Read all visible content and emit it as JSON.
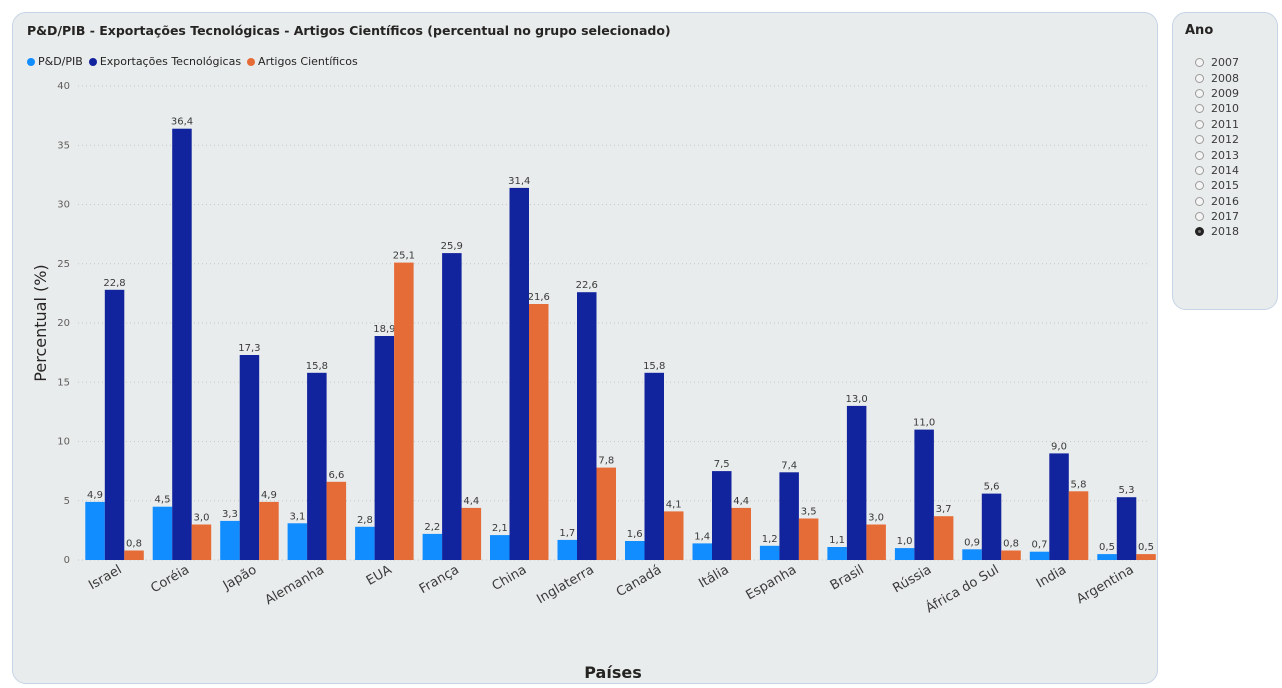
{
  "chart_title": "P&D/PIB - Exportações Tecnológicas - Artigos Científicos (percentual no grupo selecionado)",
  "colors": {
    "pd_pib": "#118dff",
    "exportacoes": "#12239e",
    "artigos": "#e66c37"
  },
  "slicer": {
    "title": "Ano",
    "options": [
      "2007",
      "2008",
      "2009",
      "2010",
      "2011",
      "2012",
      "2013",
      "2014",
      "2015",
      "2016",
      "2017",
      "2018"
    ],
    "selected": "2018"
  },
  "chart_data": {
    "type": "bar",
    "title": "P&D/PIB - Exportações Tecnológicas - Artigos Científicos (percentual no grupo selecionado)",
    "xlabel": "Países",
    "ylabel": "Percentual (%)",
    "ylim": [
      0,
      40
    ],
    "yticks": [
      0,
      5,
      10,
      15,
      20,
      25,
      30,
      35,
      40
    ],
    "grid": true,
    "legend_position": "top-left",
    "categories": [
      "Israel",
      "Coréia",
      "Japão",
      "Alemanha",
      "EUA",
      "França",
      "China",
      "Inglaterra",
      "Canadá",
      "Itália",
      "Espanha",
      "Brasil",
      "Rússia",
      "África do Sul",
      "India",
      "Argentina"
    ],
    "series": [
      {
        "name": "P&D/PIB",
        "values": [
          4.9,
          4.5,
          3.3,
          3.1,
          2.8,
          2.2,
          2.1,
          1.7,
          1.6,
          1.4,
          1.2,
          1.1,
          1.0,
          0.9,
          0.7,
          0.5
        ]
      },
      {
        "name": "Exportações Tecnológicas",
        "values": [
          22.8,
          36.4,
          17.3,
          15.8,
          18.9,
          25.9,
          31.4,
          22.6,
          15.8,
          7.5,
          7.4,
          13.0,
          11.0,
          5.6,
          9.0,
          5.3
        ]
      },
      {
        "name": "Artigos Científicos",
        "values": [
          0.8,
          3.0,
          4.9,
          6.6,
          25.1,
          4.4,
          21.6,
          7.8,
          4.1,
          4.4,
          3.5,
          3.0,
          3.7,
          0.8,
          5.8,
          0.5
        ]
      }
    ]
  }
}
